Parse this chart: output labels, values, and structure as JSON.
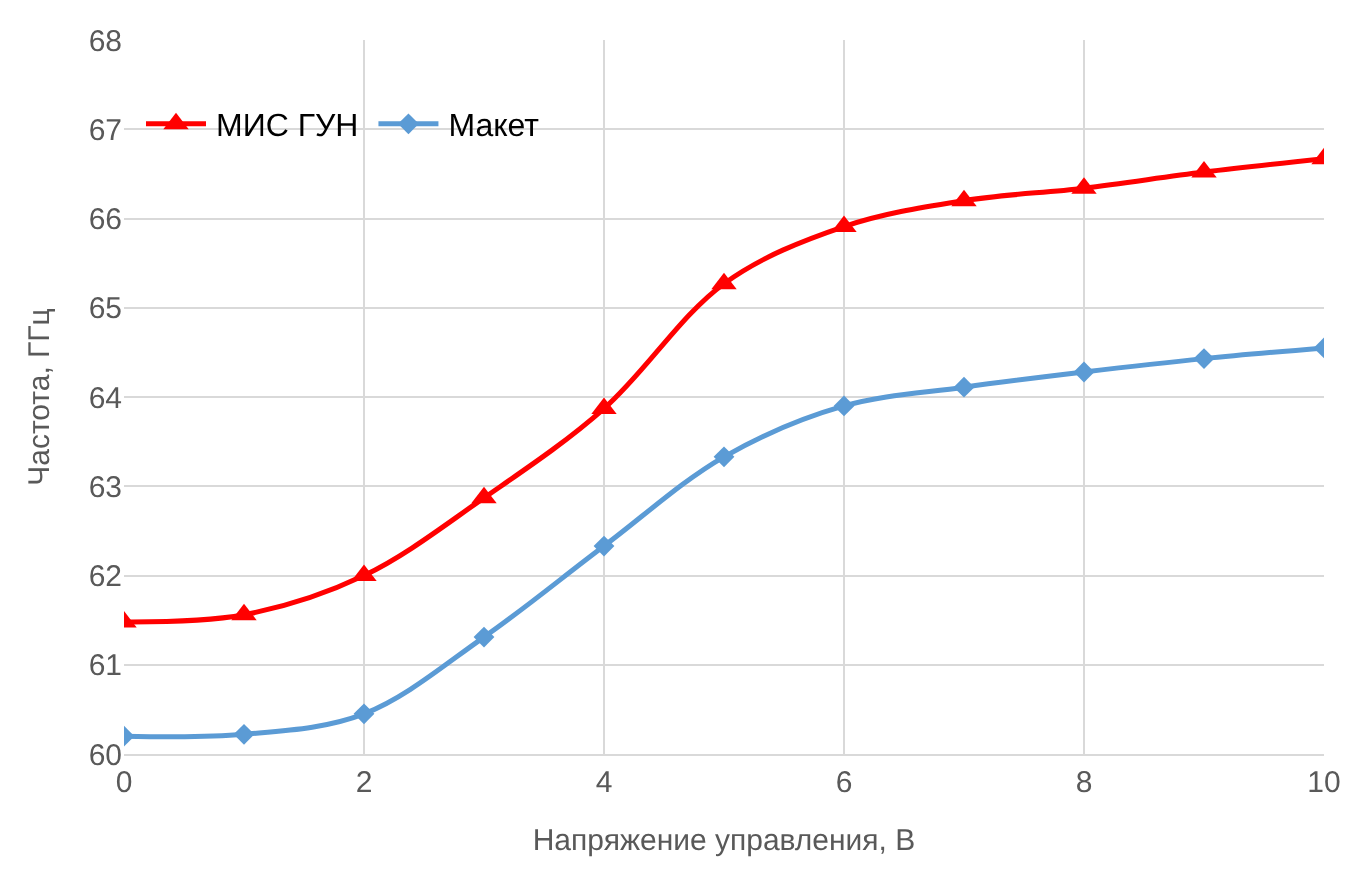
{
  "chart_data": {
    "type": "line",
    "xlabel": "Напряжение управления, В",
    "ylabel": "Частота, ГГц",
    "x": [
      0,
      1,
      2,
      3,
      4,
      5,
      6,
      7,
      8,
      9,
      10
    ],
    "series": [
      {
        "name": "МИС ГУН",
        "color": "#ff0000",
        "marker": "triangle",
        "values": [
          61.48,
          61.56,
          62.0,
          62.87,
          63.87,
          65.27,
          65.91,
          66.2,
          66.34,
          66.52,
          66.67
        ]
      },
      {
        "name": "Макет",
        "color": "#5b9bd5",
        "marker": "diamond",
        "values": [
          60.2,
          60.22,
          60.45,
          61.31,
          62.33,
          63.33,
          63.9,
          64.11,
          64.28,
          64.43,
          64.55
        ]
      }
    ],
    "xlim": [
      0,
      10
    ],
    "xticks": [
      0,
      2,
      4,
      6,
      8,
      10
    ],
    "ylim": [
      60,
      68
    ],
    "yticks": [
      60,
      61,
      62,
      63,
      64,
      65,
      66,
      67,
      68
    ],
    "grid": true,
    "legend": "top left"
  }
}
